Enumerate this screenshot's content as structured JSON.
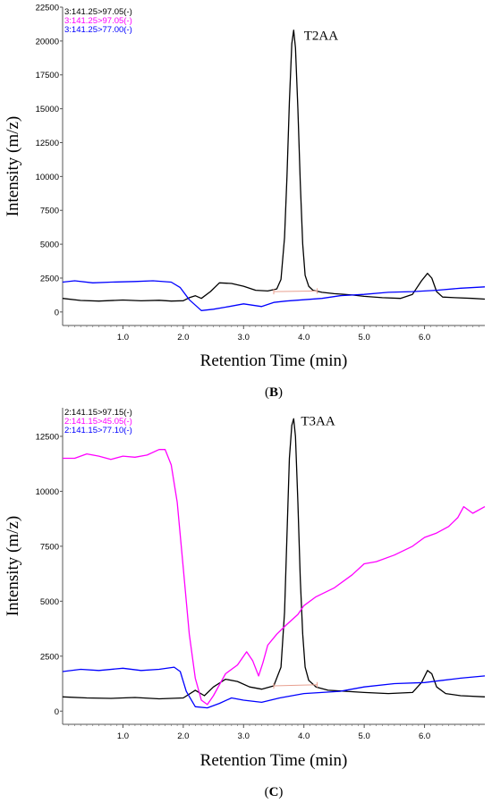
{
  "chart_data": [
    {
      "type": "line",
      "panel_label": "(B)",
      "panel_letter": "B",
      "xlabel": "Retention Time (min)",
      "ylabel": "Intensity (m/z)",
      "xlim": [
        0.0,
        7.0
      ],
      "ylim": [
        -1000,
        22500
      ],
      "x_ticks": [
        1.0,
        2.0,
        3.0,
        4.0,
        5.0,
        6.0
      ],
      "x_tick_labels": [
        "1.0",
        "2.0",
        "3.0",
        "4.0",
        "5.0",
        "6.0"
      ],
      "y_ticks": [
        0,
        2500,
        5000,
        7500,
        10000,
        12500,
        15000,
        17500,
        20000,
        22500
      ],
      "y_tick_labels": [
        "0",
        "2500",
        "5000",
        "7500",
        "10000",
        "12500",
        "15000",
        "17500",
        "20000",
        "22500"
      ],
      "peak_annotation": {
        "text": "T2AA",
        "x": 4.0,
        "y": 20100
      },
      "integration_baseline": {
        "x": [
          3.5,
          4.22
        ],
        "y": [
          1500,
          1550
        ],
        "color": "#e8a090"
      },
      "legend": [
        {
          "label": "3:141.25>97.05(-)",
          "color": "#000000"
        },
        {
          "label": "3:141.25>97.05(-)",
          "color": "#ff00ff"
        },
        {
          "label": "3:141.25>77.00(-)",
          "color": "#0000ff"
        }
      ],
      "series": [
        {
          "color": "#000000",
          "x": [
            0.0,
            0.3,
            0.6,
            1.0,
            1.3,
            1.6,
            1.8,
            2.0,
            2.1,
            2.2,
            2.3,
            2.45,
            2.6,
            2.8,
            3.0,
            3.2,
            3.4,
            3.55,
            3.62,
            3.68,
            3.72,
            3.76,
            3.8,
            3.83,
            3.86,
            3.9,
            3.94,
            3.98,
            4.02,
            4.08,
            4.15,
            4.3,
            4.5,
            4.8,
            5.0,
            5.3,
            5.6,
            5.8,
            5.95,
            6.05,
            6.12,
            6.2,
            6.3,
            6.5,
            6.8,
            7.0
          ],
          "y": [
            1000,
            850,
            800,
            880,
            820,
            860,
            800,
            830,
            1050,
            1200,
            1000,
            1500,
            2150,
            2100,
            1900,
            1600,
            1550,
            1700,
            2400,
            5500,
            10000,
            15500,
            19800,
            20800,
            19500,
            15000,
            9500,
            5000,
            2700,
            1900,
            1600,
            1450,
            1350,
            1250,
            1150,
            1050,
            1000,
            1300,
            2300,
            2850,
            2500,
            1500,
            1100,
            1050,
            1000,
            950
          ]
        },
        {
          "color": "#0000ff",
          "x": [
            0.0,
            0.2,
            0.5,
            0.8,
            1.2,
            1.5,
            1.8,
            1.95,
            2.1,
            2.3,
            2.5,
            2.7,
            3.0,
            3.3,
            3.5,
            3.7,
            4.0,
            4.3,
            4.6,
            5.0,
            5.4,
            5.8,
            6.2,
            6.6,
            7.0
          ],
          "y": [
            2200,
            2300,
            2150,
            2200,
            2250,
            2300,
            2200,
            1800,
            900,
            100,
            200,
            350,
            600,
            400,
            700,
            800,
            900,
            1000,
            1200,
            1300,
            1450,
            1500,
            1600,
            1750,
            1850
          ]
        }
      ]
    },
    {
      "type": "line",
      "panel_label": "(C)",
      "panel_letter": "C",
      "xlabel": "Retention Time (min)",
      "ylabel": "Intensity (m/z)",
      "xlim": [
        0.0,
        7.0
      ],
      "ylim": [
        -600,
        13800
      ],
      "x_ticks": [
        1.0,
        2.0,
        3.0,
        4.0,
        5.0,
        6.0
      ],
      "x_tick_labels": [
        "1.0",
        "2.0",
        "3.0",
        "4.0",
        "5.0",
        "6.0"
      ],
      "y_ticks": [
        0,
        2500,
        5000,
        7500,
        10000,
        12500
      ],
      "y_tick_labels": [
        "0",
        "2500",
        "5000",
        "7500",
        "10000",
        "12500"
      ],
      "peak_annotation": {
        "text": "T3AA",
        "x": 3.95,
        "y": 13000
      },
      "integration_baseline": {
        "x": [
          3.5,
          4.22
        ],
        "y": [
          1150,
          1200
        ],
        "color": "#e8a090"
      },
      "legend": [
        {
          "label": "2:141.15>97.15(-)",
          "color": "#000000"
        },
        {
          "label": "2:141.15>45.05(-)",
          "color": "#ff00ff"
        },
        {
          "label": "2:141.15>77.10(-)",
          "color": "#0000ff"
        }
      ],
      "series": [
        {
          "color": "#000000",
          "x": [
            0.0,
            0.4,
            0.8,
            1.2,
            1.6,
            2.0,
            2.2,
            2.35,
            2.5,
            2.7,
            2.9,
            3.1,
            3.3,
            3.5,
            3.62,
            3.68,
            3.72,
            3.76,
            3.8,
            3.83,
            3.86,
            3.9,
            3.94,
            3.98,
            4.02,
            4.08,
            4.2,
            4.4,
            4.7,
            5.0,
            5.4,
            5.8,
            5.95,
            6.05,
            6.12,
            6.2,
            6.35,
            6.6,
            7.0
          ],
          "y": [
            650,
            600,
            580,
            620,
            560,
            600,
            950,
            700,
            1100,
            1450,
            1350,
            1100,
            1000,
            1150,
            2000,
            4500,
            8000,
            11500,
            13000,
            13300,
            12500,
            9500,
            6000,
            3500,
            2000,
            1400,
            1100,
            950,
            900,
            850,
            800,
            850,
            1300,
            1850,
            1700,
            1100,
            800,
            700,
            650
          ]
        },
        {
          "color": "#0000ff",
          "x": [
            0.0,
            0.3,
            0.6,
            1.0,
            1.3,
            1.6,
            1.85,
            1.95,
            2.05,
            2.2,
            2.4,
            2.6,
            2.8,
            3.0,
            3.3,
            3.6,
            4.0,
            4.3,
            4.6,
            5.0,
            5.5,
            6.0,
            6.3,
            6.6,
            7.0
          ],
          "y": [
            1800,
            1900,
            1850,
            1950,
            1850,
            1900,
            2000,
            1800,
            900,
            200,
            150,
            350,
            600,
            500,
            400,
            600,
            800,
            850,
            900,
            1100,
            1250,
            1300,
            1400,
            1500,
            1600
          ]
        },
        {
          "color": "#ff00ff",
          "x": [
            0.0,
            0.2,
            0.4,
            0.6,
            0.8,
            1.0,
            1.2,
            1.4,
            1.6,
            1.7,
            1.8,
            1.9,
            2.0,
            2.1,
            2.2,
            2.3,
            2.4,
            2.5,
            2.6,
            2.7,
            2.9,
            3.05,
            3.15,
            3.25,
            3.32,
            3.4,
            3.55,
            3.7,
            3.9,
            4.0,
            4.2,
            4.5,
            4.8,
            5.0,
            5.2,
            5.5,
            5.8,
            6.0,
            6.2,
            6.4,
            6.55,
            6.65,
            6.8,
            7.0
          ],
          "y": [
            11500,
            11500,
            11700,
            11600,
            11450,
            11600,
            11550,
            11650,
            11900,
            11900,
            11200,
            9500,
            6500,
            3500,
            1500,
            500,
            300,
            700,
            1200,
            1700,
            2100,
            2700,
            2300,
            1600,
            2200,
            3000,
            3500,
            3900,
            4400,
            4800,
            5200,
            5600,
            6200,
            6700,
            6800,
            7100,
            7500,
            7900,
            8100,
            8400,
            8800,
            9300,
            9000,
            9300
          ]
        }
      ]
    }
  ]
}
